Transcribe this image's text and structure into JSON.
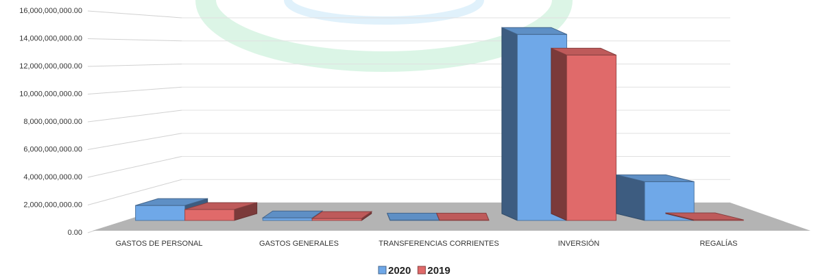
{
  "chart_data": {
    "type": "bar3d",
    "categories": [
      "GASTOS DE PERSONAL",
      "GASTOS GENERALES",
      "TRANSFERENCIAS CORRIENTES",
      "INVERSIÓN",
      "REGALÍAS"
    ],
    "series": [
      {
        "name": "2020",
        "color": "#6fa8e8",
        "values": [
          1160000000,
          200000000,
          30000000,
          14400000000,
          3000000000
        ]
      },
      {
        "name": "2019",
        "color": "#e06a6a",
        "values": [
          850000000,
          150000000,
          30000000,
          12800000000,
          50000000
        ]
      }
    ],
    "ylim": [
      0,
      16000000000
    ],
    "yticks": [
      {
        "value": 0,
        "label": "0.00"
      },
      {
        "value": 2000000000,
        "label": "2,000,000,000.00"
      },
      {
        "value": 4000000000,
        "label": "4,000,000,000.00"
      },
      {
        "value": 6000000000,
        "label": "6,000,000,000.00"
      },
      {
        "value": 8000000000,
        "label": "8,000,000,000.00"
      },
      {
        "value": 10000000000,
        "label": "10,000,000,000.00"
      },
      {
        "value": 12000000000,
        "label": "12,000,000,000.00"
      },
      {
        "value": 14000000000,
        "label": "14,000,000,000.00"
      },
      {
        "value": 16000000000,
        "label": "16,000,000,000.00"
      }
    ],
    "grid": true,
    "legend": "bottom"
  }
}
